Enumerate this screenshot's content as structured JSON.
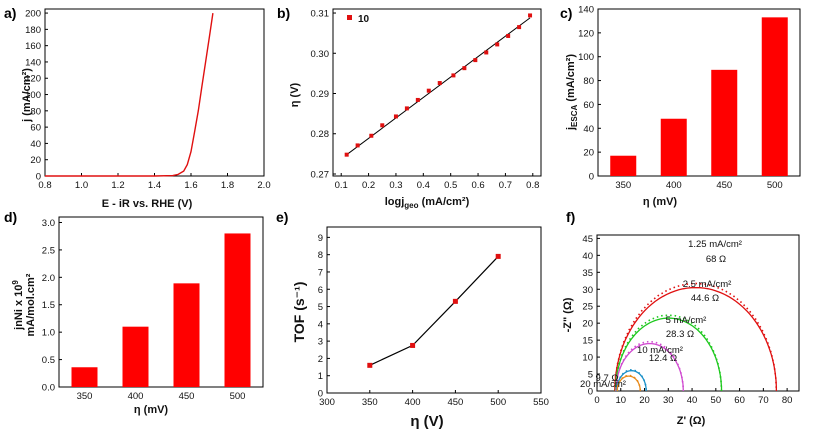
{
  "panel_labels": [
    "a)",
    "b)",
    "c)",
    "d)",
    "e)",
    "f)"
  ],
  "chart_data": [
    {
      "type": "line",
      "panel": "a)",
      "xlabel": "E - iR vs. RHE (V)",
      "ylabel": "j (mA/cm²)",
      "xlim": [
        0.8,
        2.0
      ],
      "ylim": [
        0,
        205
      ],
      "xticks": [
        "0.8",
        "1.0",
        "1.2",
        "1.4",
        "1.6",
        "1.8",
        "2.0"
      ],
      "yticks": [
        "0",
        "20",
        "40",
        "60",
        "80",
        "100",
        "120",
        "140",
        "160",
        "180",
        "200"
      ],
      "color": "#e01010",
      "series": [
        {
          "x": [
            0.8,
            1.0,
            1.2,
            1.4,
            1.5,
            1.53,
            1.56,
            1.58,
            1.6,
            1.62,
            1.64,
            1.66,
            1.68,
            1.7,
            1.72
          ],
          "y": [
            0,
            0,
            0,
            0,
            0.5,
            2,
            6,
            14,
            30,
            55,
            80,
            110,
            140,
            170,
            200
          ]
        }
      ]
    },
    {
      "type": "scatter",
      "panel": "b)",
      "xlabel": "logj",
      "xlabel_sub": "geo",
      "xlabel_unit": " (mA/cm²)",
      "ylabel": "η (V)",
      "xlim": [
        0.07,
        0.83
      ],
      "ylim": [
        0.2695,
        0.311
      ],
      "xticks": [
        "0.1",
        "0.2",
        "0.3",
        "0.4",
        "0.5",
        "0.6",
        "0.7",
        "0.8"
      ],
      "yticks": [
        "0.27",
        "0.28",
        "0.29",
        "0.30",
        "0.31"
      ],
      "legend": "10",
      "legend_position": "top-left",
      "color": "#e01010",
      "series": [
        {
          "name": "10",
          "x": [
            0.12,
            0.16,
            0.21,
            0.25,
            0.3,
            0.34,
            0.38,
            0.42,
            0.46,
            0.51,
            0.55,
            0.59,
            0.63,
            0.67,
            0.71,
            0.75,
            0.79
          ],
          "y": [
            0.2748,
            0.2771,
            0.2795,
            0.2821,
            0.2843,
            0.2863,
            0.2884,
            0.2907,
            0.2926,
            0.2945,
            0.2963,
            0.2983,
            0.3002,
            0.3022,
            0.3043,
            0.3065,
            0.3094
          ]
        }
      ],
      "fit_line": {
        "x": [
          0.12,
          0.79
        ],
        "y": [
          0.2748,
          0.3088
        ]
      }
    },
    {
      "type": "bar",
      "panel": "c)",
      "xlabel": "η (mV)",
      "ylabel": "j",
      "ylabel_sub": "ESCA",
      "ylabel_unit": " (mA/cm²)",
      "categories": [
        "350",
        "400",
        "450",
        "500"
      ],
      "values": [
        17,
        48,
        89,
        133
      ],
      "ylim": [
        0,
        140
      ],
      "yticks": [
        "0",
        "20",
        "40",
        "60",
        "80",
        "100",
        "120",
        "140"
      ],
      "color": "#ff0000"
    },
    {
      "type": "bar",
      "panel": "d)",
      "xlabel": "η (mV)",
      "ylabel_line1": "jnNi x 10",
      "ylabel_sup": "9",
      "ylabel_line2": "mA/mol.cm²",
      "categories": [
        "350",
        "400",
        "450",
        "500"
      ],
      "values": [
        0.36,
        1.1,
        1.89,
        2.8
      ],
      "ylim": [
        0,
        3.1
      ],
      "yticks": [
        "0.0",
        "0.5",
        "1.0",
        "1.5",
        "2.0",
        "2.5",
        "3.0"
      ],
      "color": "#ff0000"
    },
    {
      "type": "line",
      "panel": "e)",
      "xlabel": "η (V)",
      "ylabel": "TOF (s⁻¹)",
      "xlim": [
        300,
        550
      ],
      "ylim": [
        0,
        9.6
      ],
      "xticks": [
        "300",
        "350",
        "400",
        "450",
        "500",
        "550"
      ],
      "yticks": [
        "0",
        "1",
        "2",
        "3",
        "4",
        "5",
        "6",
        "7",
        "8",
        "9"
      ],
      "color": "#e01010",
      "series": [
        {
          "x": [
            350,
            400,
            450,
            500
          ],
          "y": [
            1.6,
            2.75,
            5.3,
            7.9
          ]
        }
      ]
    },
    {
      "type": "line",
      "panel": "f)",
      "xlabel": "Z' (Ω)",
      "ylabel": "-Z\" (Ω)",
      "xlim": [
        0,
        85
      ],
      "ylim": [
        0,
        46
      ],
      "xticks": [
        "0",
        "10",
        "20",
        "30",
        "40",
        "50",
        "60",
        "70",
        "80"
      ],
      "yticks": [
        "0",
        "5",
        "10",
        "15",
        "20",
        "25",
        "30",
        "35",
        "40",
        "45"
      ],
      "series": [
        {
          "name": "1.25 mA/cm²",
          "resistance": "68 Ω",
          "color": "#e01010",
          "x_start": 7.5,
          "x_end": 75.5,
          "y_max": 30.5
        },
        {
          "name": "2.5 mA/cm²",
          "resistance": "44.6 Ω",
          "color": "#1ec81e",
          "x_start": 7.8,
          "x_end": 52.4,
          "y_max": 21.5
        },
        {
          "name": "5 mA/cm²",
          "resistance": "28.3 Ω",
          "color": "#d04ad0",
          "x_start": 8.0,
          "x_end": 36.3,
          "y_max": 14
        },
        {
          "name": "10 mA/cm²",
          "resistance": "12.4 Ω",
          "color": "#1a90c8",
          "x_start": 8.3,
          "x_end": 20.7,
          "y_max": 6
        },
        {
          "name": "20 mA/cm²",
          "resistance": "9.7 Ω",
          "color": "#e88a1a",
          "x_start": 8.5,
          "x_end": 18.2,
          "y_max": 4.4
        }
      ]
    }
  ]
}
